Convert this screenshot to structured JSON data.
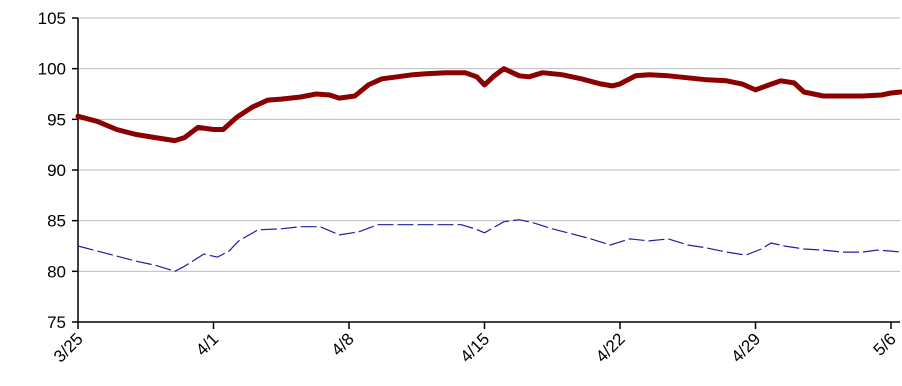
{
  "chart_data": {
    "type": "line",
    "title": "",
    "xlabel": "",
    "ylabel": "",
    "ylim": [
      75,
      105
    ],
    "y_ticks": [
      75,
      80,
      85,
      90,
      95,
      100,
      105
    ],
    "x_ticks": [
      {
        "day": 0,
        "label": "3/25"
      },
      {
        "day": 7,
        "label": "4/1"
      },
      {
        "day": 14,
        "label": "4/8"
      },
      {
        "day": 21,
        "label": "4/15"
      },
      {
        "day": 28,
        "label": "4/22"
      },
      {
        "day": 35,
        "label": "4/29"
      },
      {
        "day": 42,
        "label": "5/6"
      }
    ],
    "x_range": [
      0,
      42.5
    ],
    "grid": "horizontal",
    "legend": "none",
    "series": [
      {
        "color": "#8b0000",
        "style": "solid",
        "points": [
          [
            0,
            95.3
          ],
          [
            1,
            94.8
          ],
          [
            2,
            94.0
          ],
          [
            3,
            93.5
          ],
          [
            4,
            93.2
          ],
          [
            5,
            92.9
          ],
          [
            5.5,
            93.2
          ],
          [
            6.2,
            94.2
          ],
          [
            7,
            94.0
          ],
          [
            7.5,
            94.0
          ],
          [
            8.2,
            95.2
          ],
          [
            9,
            96.2
          ],
          [
            9.8,
            96.9
          ],
          [
            10.5,
            97.0
          ],
          [
            11.5,
            97.2
          ],
          [
            12.3,
            97.5
          ],
          [
            13,
            97.4
          ],
          [
            13.5,
            97.1
          ],
          [
            14.3,
            97.3
          ],
          [
            15,
            98.4
          ],
          [
            15.7,
            99.0
          ],
          [
            16.5,
            99.2
          ],
          [
            17.3,
            99.4
          ],
          [
            18,
            99.5
          ],
          [
            19,
            99.6
          ],
          [
            20,
            99.6
          ],
          [
            20.6,
            99.2
          ],
          [
            21,
            98.4
          ],
          [
            21.5,
            99.3
          ],
          [
            22,
            100.0
          ],
          [
            22.8,
            99.3
          ],
          [
            23.3,
            99.2
          ],
          [
            24,
            99.6
          ],
          [
            25,
            99.4
          ],
          [
            26,
            99.0
          ],
          [
            27,
            98.5
          ],
          [
            27.6,
            98.3
          ],
          [
            28,
            98.5
          ],
          [
            28.8,
            99.3
          ],
          [
            29.5,
            99.4
          ],
          [
            30.5,
            99.3
          ],
          [
            31.5,
            99.1
          ],
          [
            32.5,
            98.9
          ],
          [
            33.5,
            98.8
          ],
          [
            34.3,
            98.5
          ],
          [
            35,
            97.9
          ],
          [
            35.7,
            98.4
          ],
          [
            36.3,
            98.8
          ],
          [
            37,
            98.6
          ],
          [
            37.5,
            97.7
          ],
          [
            38.5,
            97.3
          ],
          [
            39.5,
            97.3
          ],
          [
            40.5,
            97.3
          ],
          [
            41.5,
            97.4
          ],
          [
            42,
            97.6
          ],
          [
            42.5,
            97.7
          ]
        ]
      },
      {
        "color": "#1f1fa8",
        "style": "dashed",
        "points": [
          [
            0,
            82.5
          ],
          [
            1,
            82.0
          ],
          [
            2,
            81.5
          ],
          [
            3,
            81.0
          ],
          [
            4,
            80.6
          ],
          [
            5,
            80.0
          ],
          [
            5.5,
            80.5
          ],
          [
            6.5,
            81.7
          ],
          [
            7.2,
            81.4
          ],
          [
            7.8,
            82.0
          ],
          [
            8.3,
            83.0
          ],
          [
            9.3,
            84.1
          ],
          [
            10.5,
            84.2
          ],
          [
            11.5,
            84.4
          ],
          [
            12.5,
            84.4
          ],
          [
            13.5,
            83.6
          ],
          [
            14.5,
            83.9
          ],
          [
            15.5,
            84.6
          ],
          [
            17,
            84.6
          ],
          [
            18.5,
            84.6
          ],
          [
            19.8,
            84.6
          ],
          [
            20.5,
            84.2
          ],
          [
            21,
            83.8
          ],
          [
            22,
            84.9
          ],
          [
            22.8,
            85.1
          ],
          [
            23.5,
            84.8
          ],
          [
            24.5,
            84.2
          ],
          [
            25.5,
            83.7
          ],
          [
            26.5,
            83.2
          ],
          [
            27.5,
            82.6
          ],
          [
            28.5,
            83.2
          ],
          [
            29.5,
            83.0
          ],
          [
            30.5,
            83.2
          ],
          [
            31.5,
            82.6
          ],
          [
            32.5,
            82.3
          ],
          [
            33.5,
            81.9
          ],
          [
            34.5,
            81.6
          ],
          [
            35.3,
            82.2
          ],
          [
            35.8,
            82.8
          ],
          [
            36.5,
            82.5
          ],
          [
            37.5,
            82.2
          ],
          [
            38.5,
            82.1
          ],
          [
            39.5,
            81.9
          ],
          [
            40.5,
            81.9
          ],
          [
            41.3,
            82.1
          ],
          [
            42,
            82.0
          ],
          [
            42.5,
            81.9
          ]
        ]
      }
    ]
  }
}
